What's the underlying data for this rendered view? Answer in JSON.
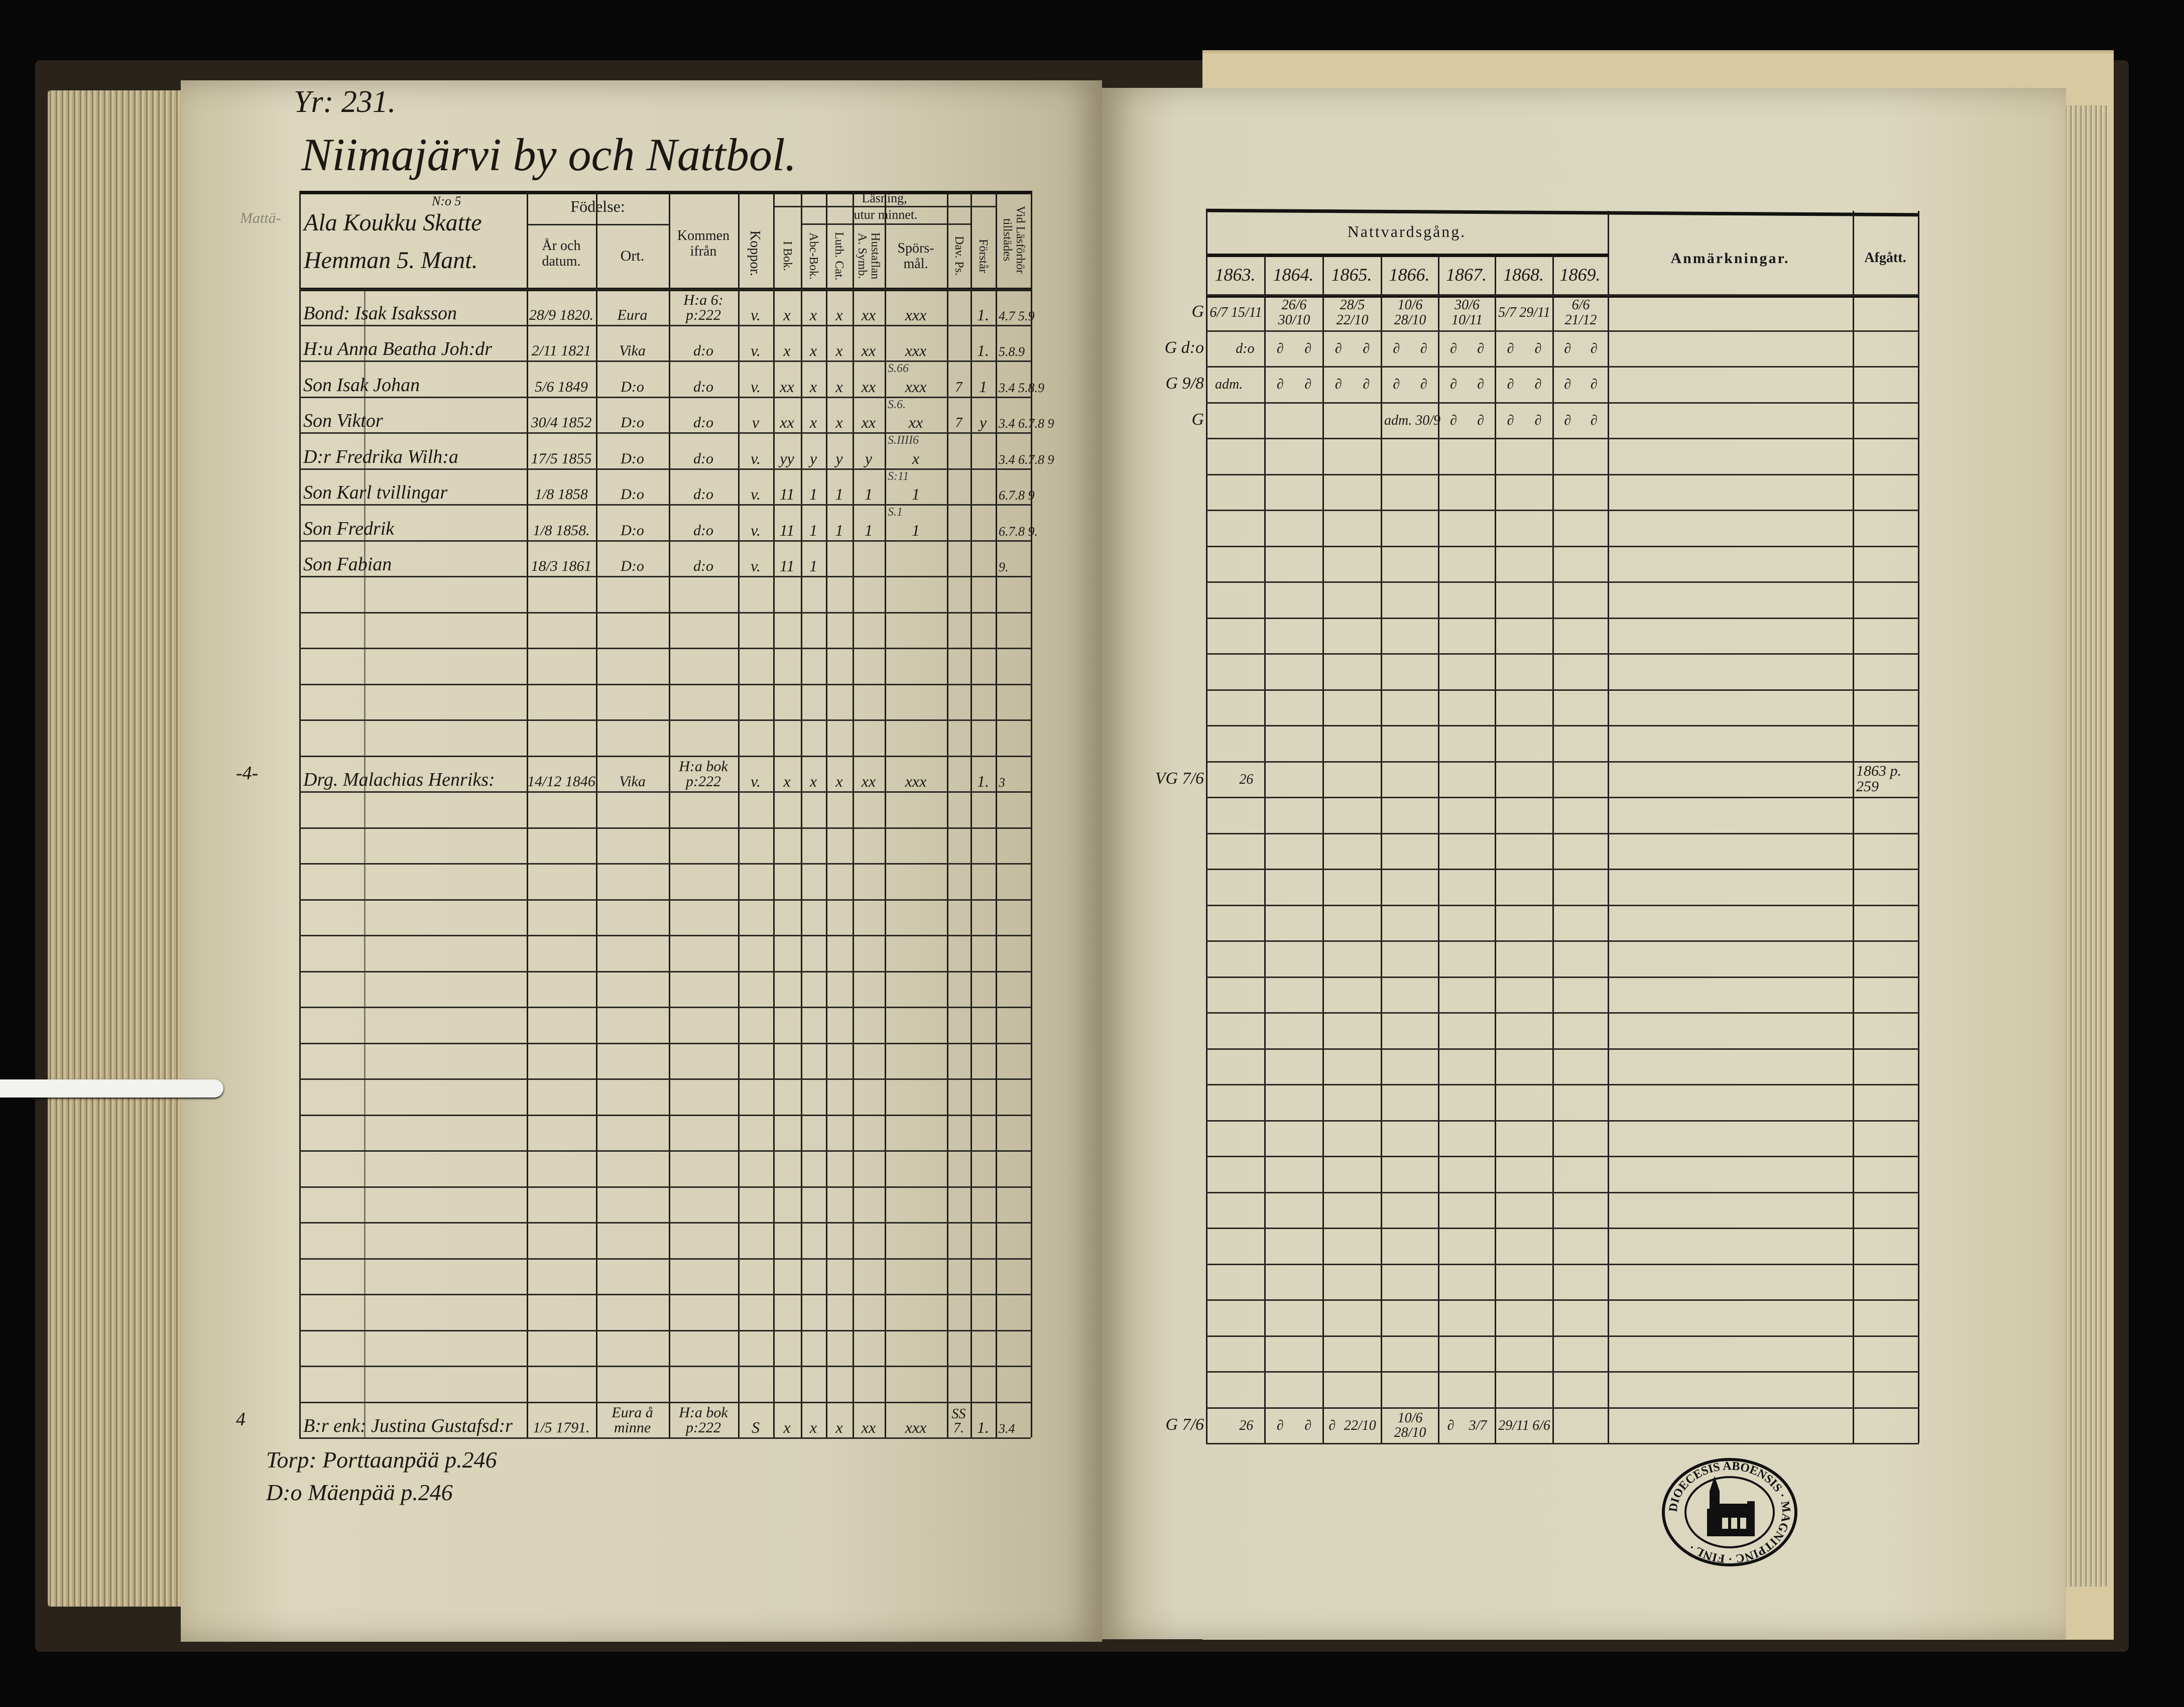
{
  "left_page": {
    "page_ref": "Yr: 231.",
    "village_title": "Niimajärvi by och Nattbol.",
    "margin_label": "Mattä-",
    "household_number": "N:o 5",
    "household_name": "Ala Koukku Skatte",
    "household_type": "Hemman 5. Mant.",
    "headers": {
      "fodelse": "Födelse:",
      "ar_datum": "År och datum.",
      "ort": "Ort.",
      "kommen": "Kommen ifrån",
      "koppor": "Koppor.",
      "lasning": "Läsning,",
      "utur_minnet": "utur minnet.",
      "i_bok": "I Bok.",
      "abc_bok": "Abc-Bok.",
      "luth_cat": "Luth. Cat.",
      "hustaflan": "Hustaflan A. Symb.",
      "sporsmal": "Spörs-mål.",
      "dav_ps": "Dav. Ps.",
      "forstar": "Förstår",
      "lasforhor": "Vid Läsförhör tillstädes"
    },
    "entries": [
      {
        "margin": "",
        "name": "Bond: Isak Isaksson",
        "birth_date": "28/9 1820.",
        "birth_place": "Eura",
        "came_from": "H:a 6: p:222",
        "koppor": "v.",
        "i_bok": "x",
        "abc_bok": "x",
        "luth_cat": "x",
        "hustaflan": "xx",
        "sporsmal": "xxx",
        "dav_ps": "",
        "forstar": "1.",
        "lasforhor": "4.7 5.9",
        "note": ""
      },
      {
        "margin": "",
        "name": "H:u Anna Beatha Joh:dr",
        "birth_date": "2/11 1821",
        "birth_place": "Vika",
        "came_from": "d:o",
        "koppor": "v.",
        "i_bok": "x",
        "abc_bok": "x",
        "luth_cat": "x",
        "hustaflan": "xx",
        "sporsmal": "xxx",
        "dav_ps": "",
        "forstar": "1.",
        "lasforhor": "5.8.9",
        "note": ""
      },
      {
        "margin": "",
        "name": "Son Isak Johan",
        "birth_date": "5/6 1849",
        "birth_place": "D:o",
        "came_from": "d:o",
        "koppor": "v.",
        "i_bok": "xx",
        "abc_bok": "x",
        "luth_cat": "x",
        "hustaflan": "xx",
        "sporsmal": "xxx",
        "dav_ps": "7",
        "forstar": "1",
        "lasforhor": "3.4 5.8.9",
        "note": "S.66"
      },
      {
        "margin": "",
        "name": "Son Viktor",
        "birth_date": "30/4 1852",
        "birth_place": "D:o",
        "came_from": "d:o",
        "koppor": "v",
        "i_bok": "xx",
        "abc_bok": "x",
        "luth_cat": "x",
        "hustaflan": "xx",
        "sporsmal": "xx",
        "dav_ps": "7",
        "forstar": "y",
        "lasforhor": "3.4 6.7.8 9",
        "note": "S.6."
      },
      {
        "margin": "",
        "name": "D:r Fredrika Wilh:a",
        "birth_date": "17/5 1855",
        "birth_place": "D:o",
        "came_from": "d:o",
        "koppor": "v.",
        "i_bok": "yy",
        "abc_bok": "y",
        "luth_cat": "y",
        "hustaflan": "y",
        "sporsmal": "x",
        "dav_ps": "",
        "forstar": "",
        "lasforhor": "3.4 6.7.8 9",
        "note": "S.IIII6"
      },
      {
        "margin": "",
        "name": "Son Karl  tvillingar",
        "birth_date": "1/8 1858",
        "birth_place": "D:o",
        "came_from": "d:o",
        "koppor": "v.",
        "i_bok": "11",
        "abc_bok": "1",
        "luth_cat": "1",
        "hustaflan": "1",
        "sporsmal": "1",
        "dav_ps": "",
        "forstar": "",
        "lasforhor": "6.7.8 9",
        "note": "S:11"
      },
      {
        "margin": "",
        "name": "Son Fredrik",
        "birth_date": "1/8 1858.",
        "birth_place": "D:o",
        "came_from": "d:o",
        "koppor": "v.",
        "i_bok": "11",
        "abc_bok": "1",
        "luth_cat": "1",
        "hustaflan": "1",
        "sporsmal": "1",
        "dav_ps": "",
        "forstar": "",
        "lasforhor": "6.7.8 9.",
        "note": "S.1"
      },
      {
        "margin": "",
        "name": "Son Fabian",
        "birth_date": "18/3 1861",
        "birth_place": "D:o",
        "came_from": "d:o",
        "koppor": "v.",
        "i_bok": "11",
        "abc_bok": "1",
        "luth_cat": "",
        "hustaflan": "",
        "sporsmal": "",
        "dav_ps": "",
        "forstar": "",
        "lasforhor": "9.",
        "note": ""
      },
      {
        "margin": "-4-",
        "name": "Drg. Malachias Henriks:",
        "birth_date": "14/12 1846",
        "birth_place": "Vika",
        "came_from": "H:a bok p:222",
        "koppor": "v.",
        "i_bok": "x",
        "abc_bok": "x",
        "luth_cat": "x",
        "hustaflan": "xx",
        "sporsmal": "xxx",
        "dav_ps": "",
        "forstar": "1.",
        "lasforhor": "3",
        "note": ""
      },
      {
        "margin": "4",
        "name": "B:r enk: Justina Gustafsd:r",
        "birth_date": "1/5 1791.",
        "birth_place": "Eura å minne",
        "came_from": "H:a bok p:222",
        "koppor": "S",
        "i_bok": "x",
        "abc_bok": "x",
        "luth_cat": "x",
        "hustaflan": "xx",
        "sporsmal": "xxx",
        "dav_ps": "SS 7.",
        "forstar": "1.",
        "lasforhor": "3.4",
        "note": ""
      }
    ],
    "footnotes": [
      "Torp: Porttaanpää p.246",
      "D:o Mäenpää p.246"
    ]
  },
  "right_page": {
    "headers": {
      "nattvardsgang": "Nattvardsgång.",
      "years": [
        "1863.",
        "1864.",
        "1865.",
        "1866.",
        "1867.",
        "1868.",
        "1869."
      ],
      "anmarkningar": "Anmärkningar.",
      "afgatt": "Afgått."
    },
    "rows": [
      {
        "prefix": "G",
        "dates": [
          [
            "6/7",
            "15/11"
          ],
          [
            "26/6",
            "30/10"
          ],
          [
            "28/5",
            "22/10"
          ],
          [
            "10/6",
            "28/10"
          ],
          [
            "30/6",
            "10/11"
          ],
          [
            "5/7",
            "29/11"
          ],
          [
            "6/6",
            "21/12"
          ]
        ],
        "afgatt": ""
      },
      {
        "prefix": "G d:o",
        "dates": [
          [
            "",
            "d:o"
          ],
          [
            "∂",
            "∂"
          ],
          [
            "∂",
            "∂"
          ],
          [
            "∂",
            "∂"
          ],
          [
            "∂",
            "∂"
          ],
          [
            "∂",
            "∂"
          ],
          [
            "∂",
            "∂"
          ]
        ],
        "afgatt": ""
      },
      {
        "prefix": "G 9/8",
        "dates": [
          [
            "adm.",
            ""
          ],
          [
            "∂",
            "∂"
          ],
          [
            "∂",
            "∂"
          ],
          [
            "∂",
            "∂"
          ],
          [
            "∂",
            "∂"
          ],
          [
            "∂",
            "∂"
          ],
          [
            "∂",
            "∂"
          ]
        ],
        "afgatt": ""
      },
      {
        "prefix": "G",
        "dates": [
          [
            "",
            ""
          ],
          [
            "",
            ""
          ],
          [
            "",
            ""
          ],
          [
            "adm. 30/9",
            ""
          ],
          [
            "∂",
            "∂"
          ],
          [
            "∂",
            "∂"
          ],
          [
            "∂",
            "∂"
          ]
        ],
        "afgatt": ""
      },
      {
        "prefix": "VG 7/6",
        "dates": [
          [
            "",
            "26"
          ],
          [
            "",
            ""
          ],
          [
            "",
            ""
          ],
          [
            "",
            ""
          ],
          [
            "",
            ""
          ],
          [
            "",
            ""
          ],
          [
            "",
            ""
          ]
        ],
        "afgatt": "1863 p. 259"
      },
      {
        "prefix": "G 7/6",
        "dates": [
          [
            "",
            "26"
          ],
          [
            "∂",
            "∂"
          ],
          [
            "∂",
            "22/10"
          ],
          [
            "10/6",
            "28/10"
          ],
          [
            "∂",
            "3/7"
          ],
          [
            "29/11",
            "6/6"
          ],
          [
            "",
            ""
          ]
        ],
        "afgatt": ""
      }
    ],
    "stamp_text": "DIOECESIS ABOENSIS · MAGNITPINC · FINL ·"
  },
  "colors": {
    "paper": "#dcd8c0",
    "ink": "#1b1812",
    "background": "#070707"
  }
}
